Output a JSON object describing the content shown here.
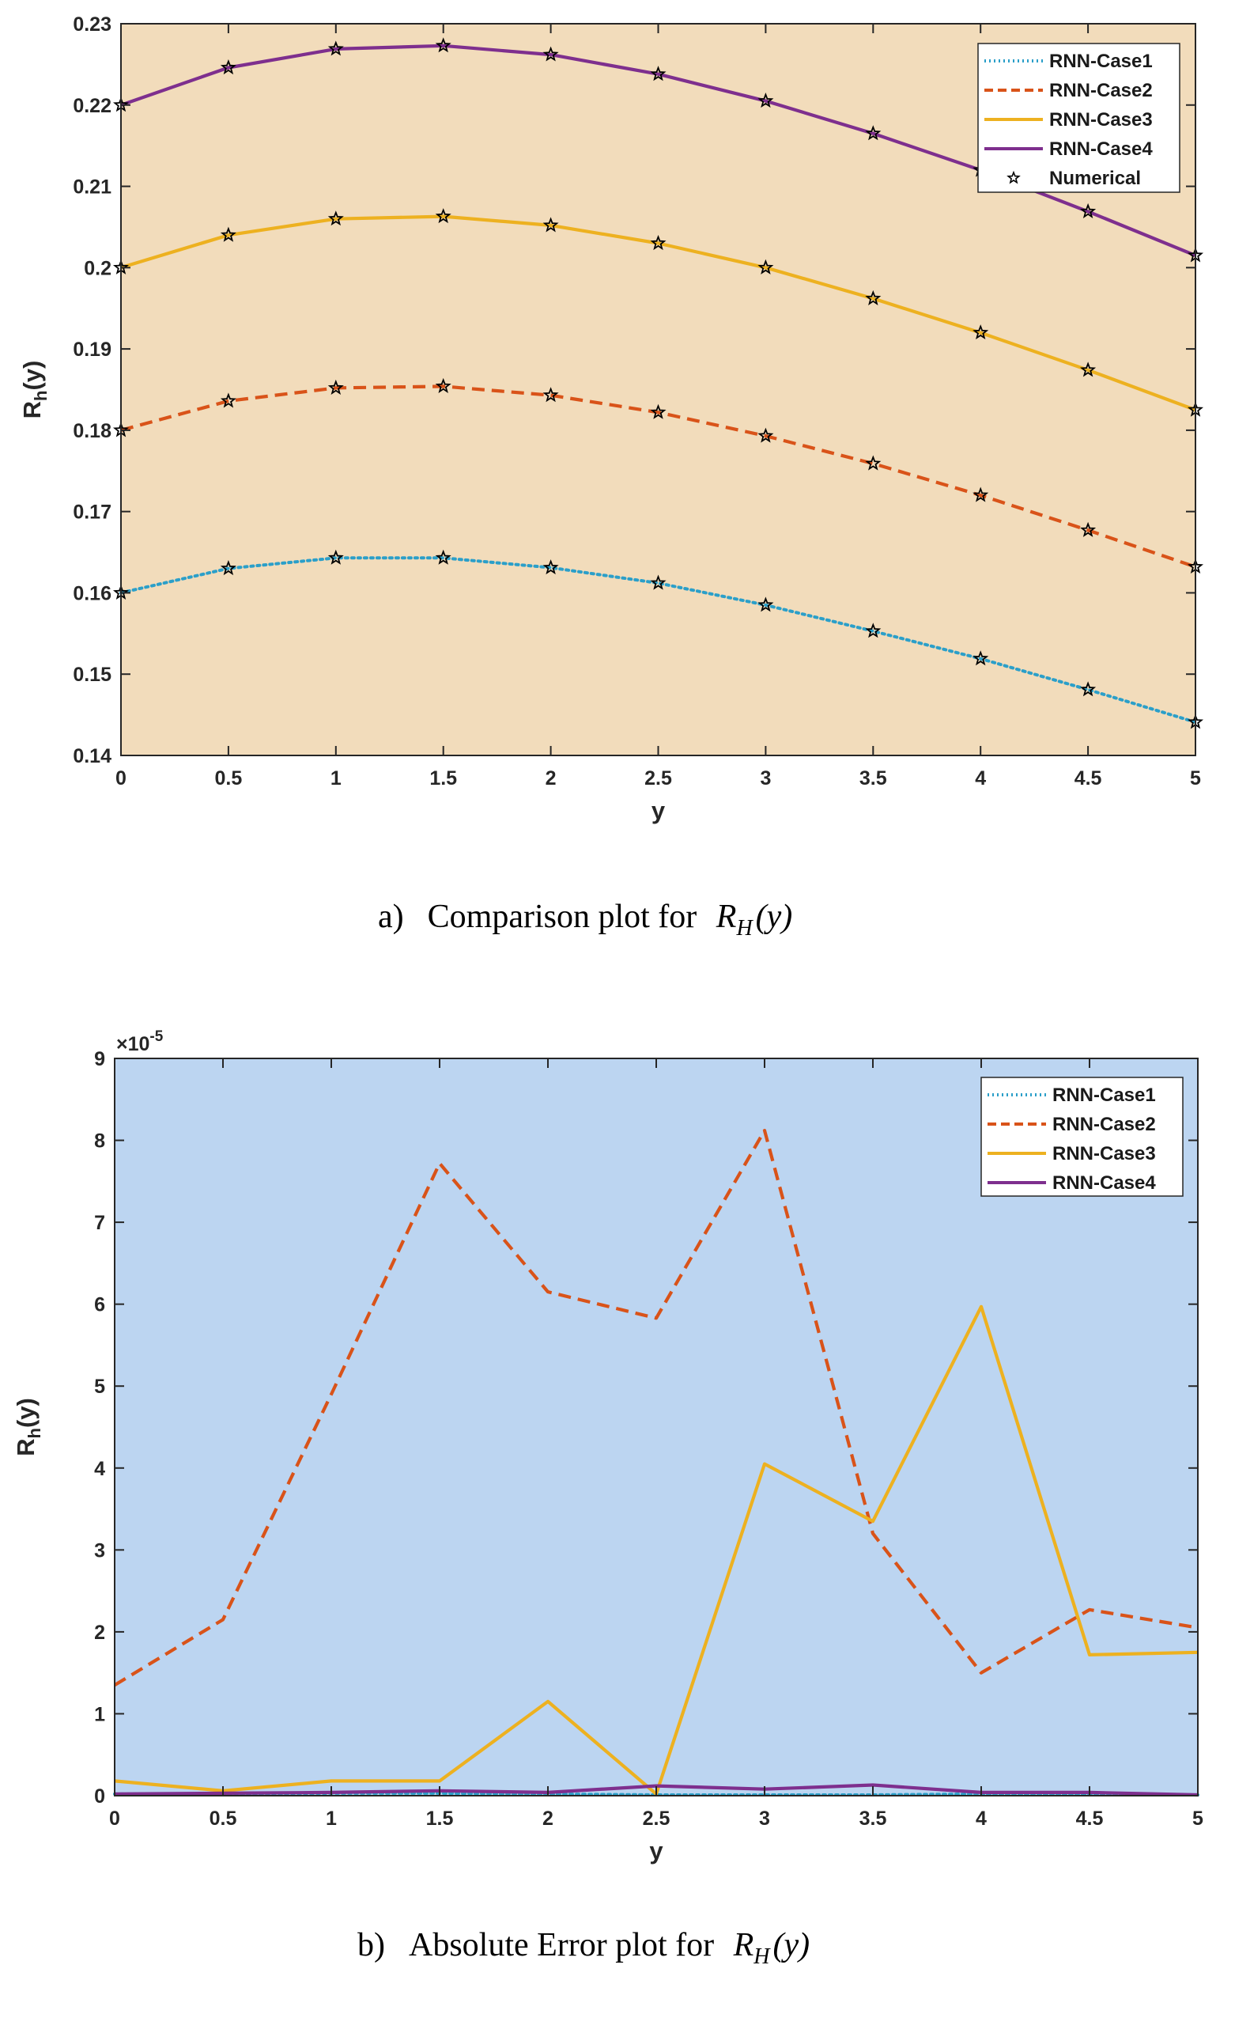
{
  "colors": {
    "case1": "#2b9fc9",
    "case2": "#d95319",
    "case3": "#edb120",
    "case4": "#7e2f8e",
    "numerical": "#000000",
    "bg_a": "#f2dcbb",
    "bg_b": "#bcd5f1"
  },
  "captions": {
    "a": {
      "prefix": "a)",
      "text": "Comparison plot for ",
      "symbol": "R",
      "sub": "H",
      "arg": "(y)"
    },
    "b": {
      "prefix": "b)",
      "text": "Absolute Error plot for ",
      "symbol": "R",
      "sub": "H",
      "arg": "(y)"
    }
  },
  "chart_data": [
    {
      "type": "line",
      "xlabel": "y",
      "ylabel": {
        "main": "R",
        "sub": "h",
        "arg": "(y)"
      },
      "xlim": [
        0,
        5
      ],
      "ylim": [
        0.14,
        0.23
      ],
      "x_ticks": [
        "0",
        "0.5",
        "1",
        "1.5",
        "2",
        "2.5",
        "3",
        "3.5",
        "4",
        "4.5",
        "5"
      ],
      "y_ticks": [
        "0.14",
        "0.15",
        "0.16",
        "0.17",
        "0.18",
        "0.19",
        "0.2",
        "0.21",
        "0.22",
        "0.23"
      ],
      "x": [
        0,
        0.5,
        1,
        1.5,
        2,
        2.5,
        3,
        3.5,
        4,
        4.5,
        5
      ],
      "legend": {
        "position": "top-right"
      },
      "grid": false,
      "series": [
        {
          "name": "RNN-Case1",
          "style": "dotted",
          "values": [
            0.16,
            0.163,
            0.1643,
            0.1643,
            0.1631,
            0.1612,
            0.1585,
            0.1553,
            0.1519,
            0.1481,
            0.1441
          ]
        },
        {
          "name": "RNN-Case2",
          "style": "dashed",
          "values": [
            0.18,
            0.1836,
            0.1852,
            0.1854,
            0.1843,
            0.1822,
            0.1793,
            0.1759,
            0.172,
            0.1677,
            0.1632
          ]
        },
        {
          "name": "RNN-Case3",
          "style": "solid",
          "values": [
            0.2,
            0.204,
            0.206,
            0.2063,
            0.2052,
            0.203,
            0.2,
            0.1962,
            0.192,
            0.1874,
            0.1825
          ]
        },
        {
          "name": "RNN-Case4",
          "style": "solid",
          "values": [
            0.22,
            0.2246,
            0.2269,
            0.2273,
            0.2262,
            0.2238,
            0.2205,
            0.2165,
            0.212,
            0.2069,
            0.2015
          ]
        },
        {
          "name": "Numerical",
          "style": "markers",
          "marker": "star",
          "groups": [
            [
              0.16,
              0.163,
              0.1643,
              0.1643,
              0.1631,
              0.1612,
              0.1585,
              0.1553,
              0.1519,
              0.1481,
              0.1441
            ],
            [
              0.18,
              0.1836,
              0.1852,
              0.1854,
              0.1843,
              0.1822,
              0.1793,
              0.1759,
              0.172,
              0.1677,
              0.1632
            ],
            [
              0.2,
              0.204,
              0.206,
              0.2063,
              0.2052,
              0.203,
              0.2,
              0.1962,
              0.192,
              0.1874,
              0.1825
            ],
            [
              0.22,
              0.2246,
              0.2269,
              0.2273,
              0.2262,
              0.2238,
              0.2205,
              0.2165,
              0.212,
              0.2069,
              0.2015
            ]
          ]
        }
      ]
    },
    {
      "type": "line",
      "xlabel": "y",
      "ylabel": {
        "main": "R",
        "sub": "h",
        "arg": "(y)"
      },
      "y_exponent": {
        "base": "×10",
        "power": "-5"
      },
      "xlim": [
        0,
        5
      ],
      "ylim": [
        0,
        9
      ],
      "x_ticks": [
        "0",
        "0.5",
        "1",
        "1.5",
        "2",
        "2.5",
        "3",
        "3.5",
        "4",
        "4.5",
        "5"
      ],
      "y_ticks": [
        "0",
        "1",
        "2",
        "3",
        "4",
        "5",
        "6",
        "7",
        "8",
        "9"
      ],
      "x": [
        0,
        0.5,
        1,
        1.5,
        2,
        2.5,
        3,
        3.5,
        4,
        4.5,
        5
      ],
      "legend": {
        "position": "top-right"
      },
      "grid": false,
      "series": [
        {
          "name": "RNN-Case1",
          "style": "dotted",
          "values": [
            0.02,
            0.02,
            0.03,
            0.03,
            0.02,
            0.01,
            0.01,
            0.01,
            0.02,
            0.02,
            0.01
          ]
        },
        {
          "name": "RNN-Case2",
          "style": "dashed",
          "values": [
            1.35,
            2.15,
            4.9,
            7.72,
            6.15,
            5.83,
            8.12,
            3.2,
            1.5,
            2.27,
            2.05
          ]
        },
        {
          "name": "RNN-Case3",
          "style": "solid",
          "values": [
            0.18,
            0.06,
            0.18,
            0.18,
            1.15,
            0.02,
            4.05,
            3.35,
            5.97,
            1.72,
            1.75
          ]
        },
        {
          "name": "RNN-Case4",
          "style": "solid",
          "values": [
            0.02,
            0.03,
            0.04,
            0.06,
            0.04,
            0.12,
            0.08,
            0.13,
            0.04,
            0.04,
            0.01
          ]
        }
      ]
    }
  ]
}
